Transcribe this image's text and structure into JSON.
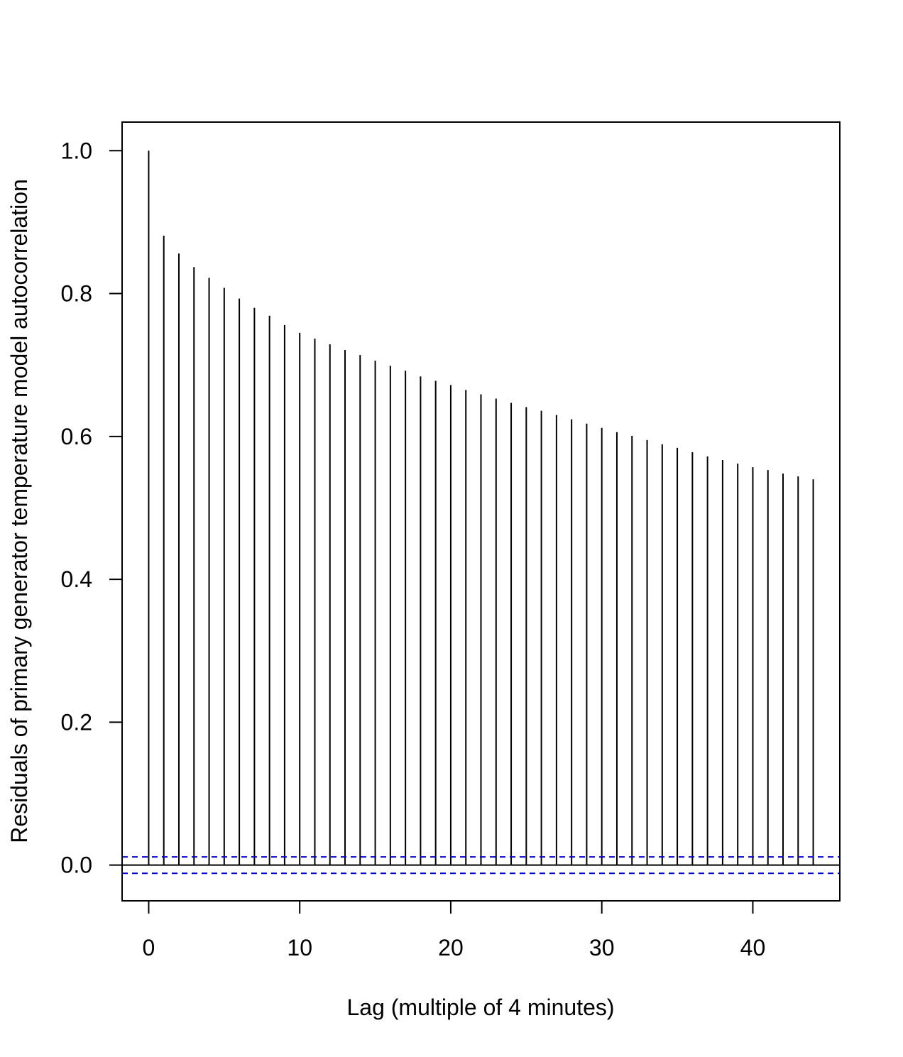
{
  "chart_data": {
    "type": "bar",
    "subtype": "acf-stem",
    "title": "",
    "xlabel": "Lag (multiple of 4 minutes)",
    "ylabel": "Residuals of primary generator temperature model autocorrelation",
    "xlim": [
      -1.76,
      45.76
    ],
    "ylim": [
      -0.05,
      1.04
    ],
    "xticks": [
      0,
      10,
      20,
      30,
      40
    ],
    "yticks": [
      0.0,
      0.2,
      0.4,
      0.6,
      0.8,
      1.0
    ],
    "xtick_labels": [
      "0",
      "10",
      "20",
      "30",
      "40"
    ],
    "ytick_labels": [
      "0.0",
      "0.2",
      "0.4",
      "0.6",
      "0.8",
      "1.0"
    ],
    "x": [
      0,
      1,
      2,
      3,
      4,
      5,
      6,
      7,
      8,
      9,
      10,
      11,
      12,
      13,
      14,
      15,
      16,
      17,
      18,
      19,
      20,
      21,
      22,
      23,
      24,
      25,
      26,
      27,
      28,
      29,
      30,
      31,
      32,
      33,
      34,
      35,
      36,
      37,
      38,
      39,
      40,
      41,
      42,
      43,
      44
    ],
    "values": [
      1.0,
      0.881,
      0.856,
      0.837,
      0.822,
      0.808,
      0.793,
      0.78,
      0.769,
      0.756,
      0.745,
      0.737,
      0.729,
      0.721,
      0.714,
      0.706,
      0.699,
      0.692,
      0.684,
      0.678,
      0.672,
      0.665,
      0.659,
      0.653,
      0.647,
      0.641,
      0.636,
      0.63,
      0.624,
      0.618,
      0.612,
      0.606,
      0.601,
      0.595,
      0.589,
      0.584,
      0.578,
      0.572,
      0.567,
      0.562,
      0.557,
      0.553,
      0.548,
      0.544,
      0.54
    ],
    "confidence_bound": 0.0115,
    "grid": false,
    "colors": {
      "stems": "#000000",
      "confidence_lines": "#0000cd",
      "zero_line": "#000000",
      "frame": "#000000"
    }
  }
}
